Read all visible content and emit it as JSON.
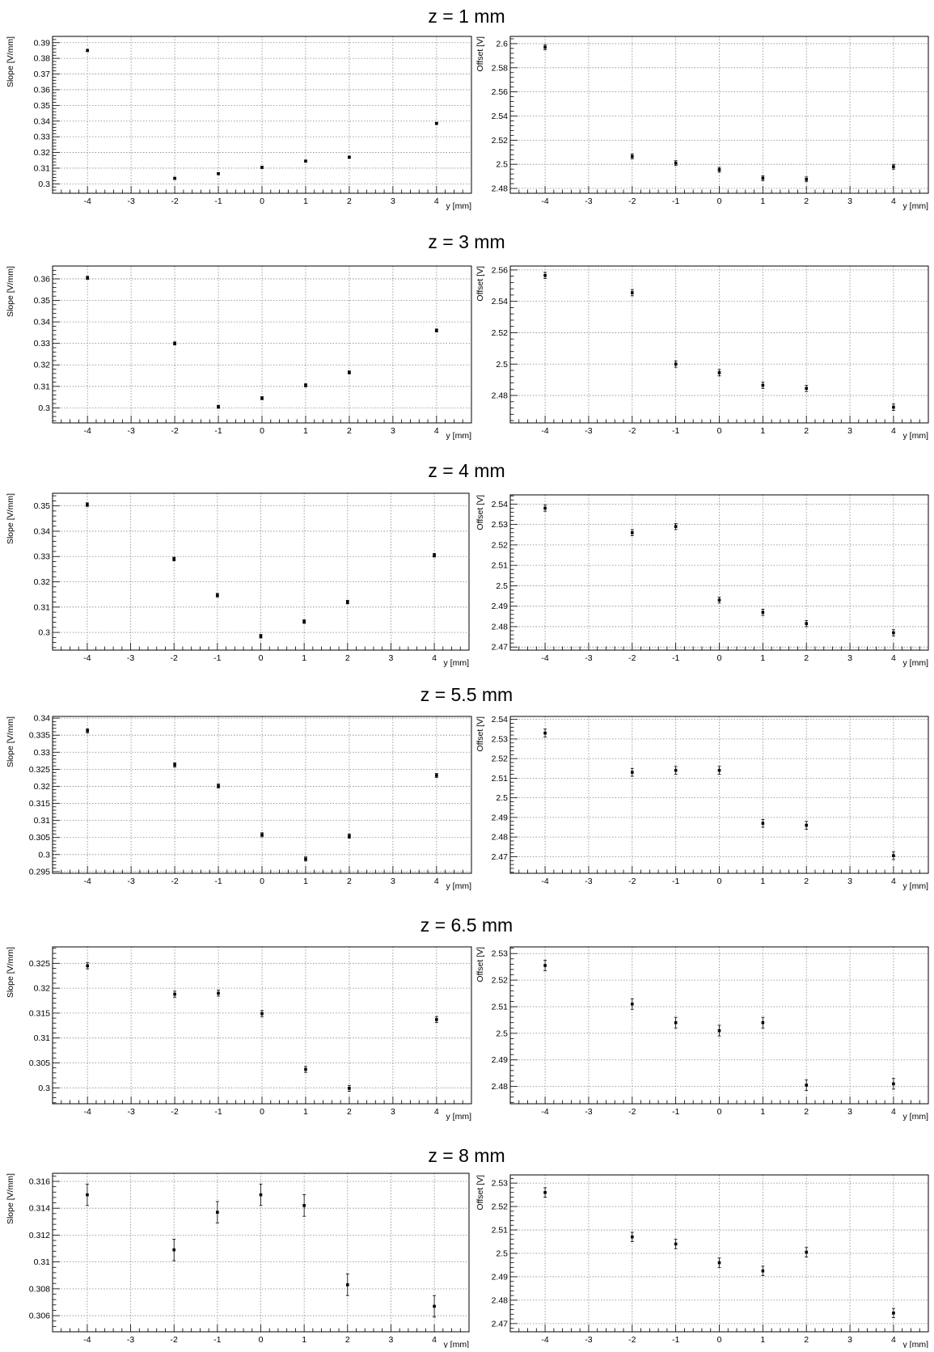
{
  "chart_data": [
    {
      "type": "scatter",
      "title": "z = 1 mm",
      "xlabel": "y [mm]",
      "ylabel": "Slope [V/mm]",
      "xlim": [
        -4.8,
        4.8
      ],
      "ylim": [
        0.294,
        0.394
      ],
      "xticks": [
        -4,
        -3,
        -2,
        -1,
        0,
        1,
        2,
        3,
        4
      ],
      "yticks": [
        0.3,
        0.31,
        0.32,
        0.33,
        0.34,
        0.35,
        0.36,
        0.37,
        0.38,
        0.39
      ],
      "ytick_labels": [
        "0.3",
        "0.31",
        "0.32",
        "0.33",
        "0.34",
        "0.35",
        "0.36",
        "0.37",
        "0.38",
        "0.39"
      ],
      "grid": true,
      "points": [
        {
          "x": -4,
          "y": 0.385,
          "err": 0.0007
        },
        {
          "x": -2,
          "y": 0.3035,
          "err": 0.0007
        },
        {
          "x": -1,
          "y": 0.3065,
          "err": 0.0007
        },
        {
          "x": 0,
          "y": 0.3105,
          "err": 0.0007
        },
        {
          "x": 1,
          "y": 0.3145,
          "err": 0.0007
        },
        {
          "x": 2,
          "y": 0.317,
          "err": 0.0007
        },
        {
          "x": 4,
          "y": 0.3385,
          "err": 0.0007
        }
      ]
    },
    {
      "type": "scatter",
      "title": "",
      "xlabel": "y [mm]",
      "ylabel": "Offset [V]",
      "xlim": [
        -4.8,
        4.8
      ],
      "ylim": [
        2.476,
        2.606
      ],
      "xticks": [
        -4,
        -3,
        -2,
        -1,
        0,
        1,
        2,
        3,
        4
      ],
      "yticks": [
        2.48,
        2.5,
        2.52,
        2.54,
        2.56,
        2.58,
        2.6
      ],
      "ytick_labels": [
        "2.48",
        "2.5",
        "2.52",
        "2.54",
        "2.56",
        "2.58",
        "2.6"
      ],
      "grid": true,
      "points": [
        {
          "x": -4,
          "y": 2.597,
          "err": 0.002
        },
        {
          "x": -2,
          "y": 2.5065,
          "err": 0.002
        },
        {
          "x": -1,
          "y": 2.501,
          "err": 0.002
        },
        {
          "x": 0,
          "y": 2.4955,
          "err": 0.002
        },
        {
          "x": 1,
          "y": 2.4885,
          "err": 0.002
        },
        {
          "x": 2,
          "y": 2.4875,
          "err": 0.002
        },
        {
          "x": 4,
          "y": 2.498,
          "err": 0.002
        }
      ]
    },
    {
      "type": "scatter",
      "title": "z = 3 mm",
      "xlabel": "y [mm]",
      "ylabel": "Slope [V/mm]",
      "xlim": [
        -4.8,
        4.8
      ],
      "ylim": [
        0.293,
        0.366
      ],
      "xticks": [
        -4,
        -3,
        -2,
        -1,
        0,
        1,
        2,
        3,
        4
      ],
      "yticks": [
        0.3,
        0.31,
        0.32,
        0.33,
        0.34,
        0.35,
        0.36
      ],
      "ytick_labels": [
        "0.3",
        "0.31",
        "0.32",
        "0.33",
        "0.34",
        "0.35",
        "0.36"
      ],
      "grid": true,
      "points": [
        {
          "x": -4,
          "y": 0.3605,
          "err": 0.0007
        },
        {
          "x": -2,
          "y": 0.33,
          "err": 0.0007
        },
        {
          "x": -1,
          "y": 0.3005,
          "err": 0.0007
        },
        {
          "x": 0,
          "y": 0.3045,
          "err": 0.0007
        },
        {
          "x": 1,
          "y": 0.3105,
          "err": 0.0007
        },
        {
          "x": 2,
          "y": 0.3165,
          "err": 0.0007
        },
        {
          "x": 4,
          "y": 0.336,
          "err": 0.0007
        }
      ]
    },
    {
      "type": "scatter",
      "title": "",
      "xlabel": "y [mm]",
      "ylabel": "Offset [V]",
      "xlim": [
        -4.8,
        4.8
      ],
      "ylim": [
        2.4625,
        2.5625
      ],
      "xticks": [
        -4,
        -3,
        -2,
        -1,
        0,
        1,
        2,
        3,
        4
      ],
      "yticks": [
        2.48,
        2.5,
        2.52,
        2.54,
        2.56
      ],
      "ytick_labels": [
        "2.48",
        "2.5",
        "2.52",
        "2.54",
        "2.56"
      ],
      "grid": true,
      "points": [
        {
          "x": -4,
          "y": 2.5565,
          "err": 0.002
        },
        {
          "x": -2,
          "y": 2.5455,
          "err": 0.002
        },
        {
          "x": -1,
          "y": 2.5,
          "err": 0.002
        },
        {
          "x": 0,
          "y": 2.4945,
          "err": 0.002
        },
        {
          "x": 1,
          "y": 2.4865,
          "err": 0.002
        },
        {
          "x": 2,
          "y": 2.4845,
          "err": 0.002
        },
        {
          "x": 4,
          "y": 2.4725,
          "err": 0.002
        }
      ]
    },
    {
      "type": "scatter",
      "title": "z = 4 mm",
      "xlabel": "y [mm]",
      "ylabel": "Slope [V/mm]",
      "xlim": [
        -4.8,
        4.8
      ],
      "ylim": [
        0.293,
        0.355
      ],
      "xticks": [
        -4,
        -3,
        -2,
        -1,
        0,
        1,
        2,
        3,
        4
      ],
      "yticks": [
        0.3,
        0.31,
        0.32,
        0.33,
        0.34,
        0.35
      ],
      "ytick_labels": [
        "0.3",
        "0.31",
        "0.32",
        "0.33",
        "0.34",
        "0.35"
      ],
      "grid": true,
      "points": [
        {
          "x": -4,
          "y": 0.3505,
          "err": 0.0007
        },
        {
          "x": -2,
          "y": 0.329,
          "err": 0.0007
        },
        {
          "x": -1,
          "y": 0.3147,
          "err": 0.0007
        },
        {
          "x": 0,
          "y": 0.2985,
          "err": 0.0007
        },
        {
          "x": 1,
          "y": 0.3043,
          "err": 0.0007
        },
        {
          "x": 2,
          "y": 0.312,
          "err": 0.0007
        },
        {
          "x": 4,
          "y": 0.3305,
          "err": 0.0007
        }
      ]
    },
    {
      "type": "scatter",
      "title": "",
      "xlabel": "y [mm]",
      "ylabel": "Offset [V]",
      "xlim": [
        -4.8,
        4.8
      ],
      "ylim": [
        2.4685,
        2.5445
      ],
      "xticks": [
        -4,
        -3,
        -2,
        -1,
        0,
        1,
        2,
        3,
        4
      ],
      "yticks": [
        2.47,
        2.48,
        2.49,
        2.5,
        2.51,
        2.52,
        2.53,
        2.54
      ],
      "ytick_labels": [
        "2.47",
        "2.48",
        "2.49",
        "2.5",
        "2.51",
        "2.52",
        "2.53",
        "2.54"
      ],
      "grid": true,
      "points": [
        {
          "x": -4,
          "y": 2.538,
          "err": 0.0015
        },
        {
          "x": -2,
          "y": 2.526,
          "err": 0.0015
        },
        {
          "x": -1,
          "y": 2.529,
          "err": 0.0015
        },
        {
          "x": 0,
          "y": 2.493,
          "err": 0.0015
        },
        {
          "x": 1,
          "y": 2.487,
          "err": 0.0015
        },
        {
          "x": 2,
          "y": 2.4815,
          "err": 0.0015
        },
        {
          "x": 4,
          "y": 2.477,
          "err": 0.0015
        }
      ]
    },
    {
      "type": "scatter",
      "title": "z = 5.5 mm",
      "xlabel": "y [mm]",
      "ylabel": "Slope [V/mm]",
      "xlim": [
        -4.8,
        4.8
      ],
      "ylim": [
        0.2945,
        0.3405
      ],
      "xticks": [
        -4,
        -3,
        -2,
        -1,
        0,
        1,
        2,
        3,
        4
      ],
      "yticks": [
        0.295,
        0.3,
        0.305,
        0.31,
        0.315,
        0.32,
        0.325,
        0.33,
        0.335,
        0.34
      ],
      "ytick_labels": [
        "0.295",
        "0.3",
        "0.305",
        "0.31",
        "0.315",
        "0.32",
        "0.325",
        "0.33",
        "0.335",
        "0.34"
      ],
      "grid": true,
      "points": [
        {
          "x": -4,
          "y": 0.3363,
          "err": 0.0006
        },
        {
          "x": -2,
          "y": 0.3263,
          "err": 0.0006
        },
        {
          "x": -1,
          "y": 0.3201,
          "err": 0.0006
        },
        {
          "x": 0,
          "y": 0.3058,
          "err": 0.0006
        },
        {
          "x": 1,
          "y": 0.2987,
          "err": 0.0006
        },
        {
          "x": 2,
          "y": 0.3054,
          "err": 0.0006
        },
        {
          "x": 4,
          "y": 0.3232,
          "err": 0.0006
        }
      ]
    },
    {
      "type": "scatter",
      "title": "",
      "xlabel": "y [mm]",
      "ylabel": "Offset [V]",
      "xlim": [
        -4.8,
        4.8
      ],
      "ylim": [
        2.4615,
        2.5415
      ],
      "xticks": [
        -4,
        -3,
        -2,
        -1,
        0,
        1,
        2,
        3,
        4
      ],
      "yticks": [
        2.47,
        2.48,
        2.49,
        2.5,
        2.51,
        2.52,
        2.53,
        2.54
      ],
      "ytick_labels": [
        "2.47",
        "2.48",
        "2.49",
        "2.5",
        "2.51",
        "2.52",
        "2.53",
        "2.54"
      ],
      "grid": true,
      "points": [
        {
          "x": -4,
          "y": 2.533,
          "err": 0.002
        },
        {
          "x": -2,
          "y": 2.513,
          "err": 0.002
        },
        {
          "x": -1,
          "y": 2.514,
          "err": 0.002
        },
        {
          "x": 0,
          "y": 2.514,
          "err": 0.002
        },
        {
          "x": 1,
          "y": 2.487,
          "err": 0.002
        },
        {
          "x": 2,
          "y": 2.486,
          "err": 0.002
        },
        {
          "x": 4,
          "y": 2.4705,
          "err": 0.002
        }
      ]
    },
    {
      "type": "scatter",
      "title": "z = 6.5 mm",
      "xlabel": "y [mm]",
      "ylabel": "Slope [V/mm]",
      "xlim": [
        -4.8,
        4.8
      ],
      "ylim": [
        0.2968,
        0.3283
      ],
      "xticks": [
        -4,
        -3,
        -2,
        -1,
        0,
        1,
        2,
        3,
        4
      ],
      "yticks": [
        0.3,
        0.305,
        0.31,
        0.315,
        0.32,
        0.325
      ],
      "ytick_labels": [
        "0.3",
        "0.305",
        "0.31",
        "0.315",
        "0.32",
        "0.325"
      ],
      "grid": true,
      "points": [
        {
          "x": -4,
          "y": 0.3245,
          "err": 0.0006
        },
        {
          "x": -2,
          "y": 0.3188,
          "err": 0.0006
        },
        {
          "x": -1,
          "y": 0.319,
          "err": 0.0006
        },
        {
          "x": 0,
          "y": 0.3149,
          "err": 0.0006
        },
        {
          "x": 1,
          "y": 0.3037,
          "err": 0.0006
        },
        {
          "x": 2,
          "y": 0.2999,
          "err": 0.0006
        },
        {
          "x": 4,
          "y": 0.3137,
          "err": 0.0006
        }
      ]
    },
    {
      "type": "scatter",
      "title": "",
      "xlabel": "y [mm]",
      "ylabel": "Offset [V]",
      "xlim": [
        -4.8,
        4.8
      ],
      "ylim": [
        2.4735,
        2.5325
      ],
      "xticks": [
        -4,
        -3,
        -2,
        -1,
        0,
        1,
        2,
        3,
        4
      ],
      "yticks": [
        2.48,
        2.49,
        2.5,
        2.51,
        2.52,
        2.53
      ],
      "ytick_labels": [
        "2.48",
        "2.49",
        "2.5",
        "2.51",
        "2.52",
        "2.53"
      ],
      "grid": true,
      "points": [
        {
          "x": -4,
          "y": 2.5255,
          "err": 0.002
        },
        {
          "x": -2,
          "y": 2.511,
          "err": 0.002
        },
        {
          "x": -1,
          "y": 2.504,
          "err": 0.002
        },
        {
          "x": 0,
          "y": 2.501,
          "err": 0.002
        },
        {
          "x": 1,
          "y": 2.504,
          "err": 0.002
        },
        {
          "x": 2,
          "y": 2.4805,
          "err": 0.002
        },
        {
          "x": 4,
          "y": 2.481,
          "err": 0.002
        }
      ]
    },
    {
      "type": "scatter",
      "title": "z = 8 mm",
      "xlabel": "y [mm]",
      "ylabel": "Slope [V/mm]",
      "xlim": [
        -4.8,
        4.8
      ],
      "ylim": [
        0.3048,
        0.3166
      ],
      "xticks": [
        -4,
        -3,
        -2,
        -1,
        0,
        1,
        2,
        3,
        4
      ],
      "yticks": [
        0.306,
        0.308,
        0.31,
        0.312,
        0.314,
        0.316
      ],
      "ytick_labels": [
        "0.306",
        "0.308",
        "0.31",
        "0.312",
        "0.314",
        "0.316"
      ],
      "grid": true,
      "points": [
        {
          "x": -4,
          "y": 0.315,
          "err": 0.0008
        },
        {
          "x": -2,
          "y": 0.3109,
          "err": 0.0008
        },
        {
          "x": -1,
          "y": 0.3137,
          "err": 0.0008
        },
        {
          "x": 0,
          "y": 0.315,
          "err": 0.0008
        },
        {
          "x": 1,
          "y": 0.3142,
          "err": 0.0008
        },
        {
          "x": 2,
          "y": 0.3083,
          "err": 0.0008
        },
        {
          "x": 4,
          "y": 0.3067,
          "err": 0.0008
        }
      ]
    },
    {
      "type": "scatter",
      "title": "",
      "xlabel": "y [mm]",
      "ylabel": "Offset [V]",
      "xlim": [
        -4.8,
        4.8
      ],
      "ylim": [
        2.4665,
        2.5335
      ],
      "xticks": [
        -4,
        -3,
        -2,
        -1,
        0,
        1,
        2,
        3,
        4
      ],
      "yticks": [
        2.47,
        2.48,
        2.49,
        2.5,
        2.51,
        2.52,
        2.53
      ],
      "ytick_labels": [
        "2.47",
        "2.48",
        "2.49",
        "2.5",
        "2.51",
        "2.52",
        "2.53"
      ],
      "grid": true,
      "points": [
        {
          "x": -4,
          "y": 2.526,
          "err": 0.002
        },
        {
          "x": -2,
          "y": 2.507,
          "err": 0.002
        },
        {
          "x": -1,
          "y": 2.504,
          "err": 0.002
        },
        {
          "x": 0,
          "y": 2.496,
          "err": 0.002
        },
        {
          "x": 1,
          "y": 2.4925,
          "err": 0.002
        },
        {
          "x": 2,
          "y": 2.5005,
          "err": 0.002
        },
        {
          "x": 4,
          "y": 2.4745,
          "err": 0.002
        }
      ]
    }
  ]
}
